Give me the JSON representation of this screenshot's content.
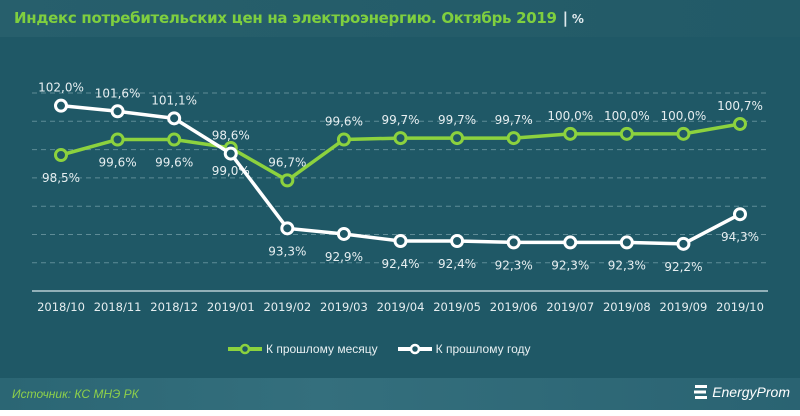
{
  "title": {
    "main": "Индекс потребительских цен на электроэнергию. Октябрь 2019",
    "separator": "|",
    "unit": "%"
  },
  "chart_data": {
    "type": "line",
    "title": "Индекс потребительских цен на электроэнергию. Октябрь 2019",
    "unit": "%",
    "categories": [
      "2018/10",
      "2018/11",
      "2018/12",
      "2019/01",
      "2019/02",
      "2019/03",
      "2019/04",
      "2019/05",
      "2019/06",
      "2019/07",
      "2019/08",
      "2019/09",
      "2019/10"
    ],
    "series": [
      {
        "name": "К прошлому месяцу",
        "color": "#8cd23e",
        "values": [
          98.5,
          99.6,
          99.6,
          99.0,
          96.7,
          99.6,
          99.7,
          99.7,
          99.7,
          100.0,
          100.0,
          100.0,
          100.7
        ],
        "labels": [
          "98,5%",
          "99,6%",
          "99,6%",
          "99,0%",
          "96,7%",
          "99,6%",
          "99,7%",
          "99,7%",
          "99,7%",
          "100,0%",
          "100,0%",
          "100,0%",
          "100,7%"
        ]
      },
      {
        "name": "К прошлому году",
        "color": "#ffffff",
        "values": [
          102.0,
          101.6,
          101.1,
          98.6,
          93.3,
          92.9,
          92.4,
          92.4,
          92.3,
          92.3,
          92.3,
          92.2,
          94.3
        ],
        "labels": [
          "102,0%",
          "101,6%",
          "101,1%",
          "98,6%",
          "93,3%",
          "92,9%",
          "92,4%",
          "92,4%",
          "92,3%",
          "92,3%",
          "92,3%",
          "92,2%",
          "94,3%"
        ]
      }
    ],
    "grid": true,
    "legend": "bottom"
  },
  "footer": {
    "source": "Источник: КС МНЭ РК",
    "logo": "EnergyProm"
  },
  "colors": {
    "background": "#1f5866",
    "accent": "#8cd23e",
    "title": "#7fcf3f"
  }
}
